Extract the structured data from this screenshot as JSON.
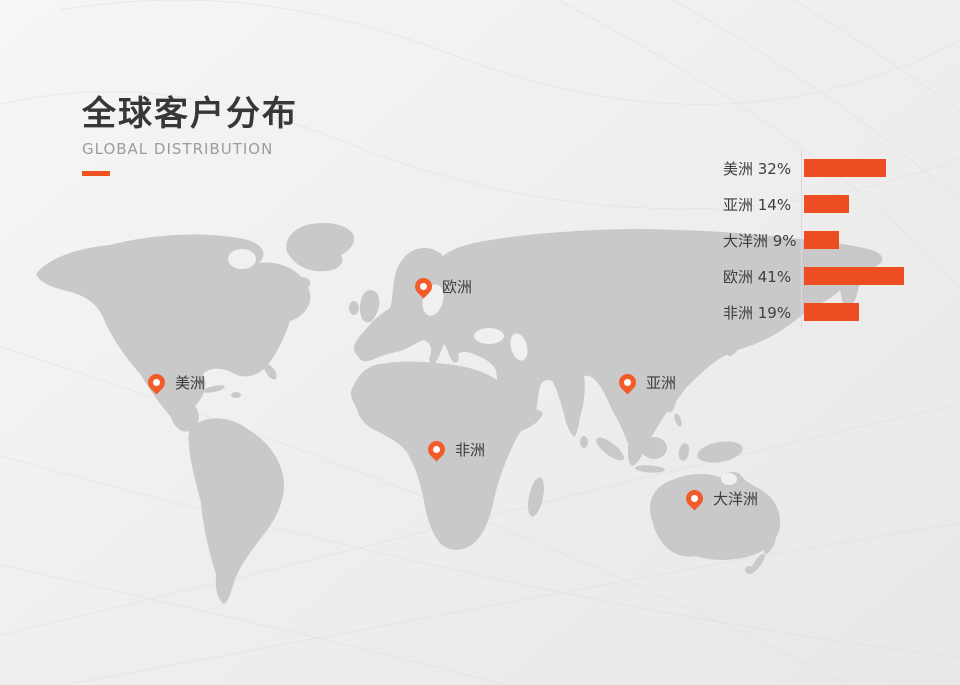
{
  "header": {
    "title": "全球客户分布",
    "subtitle": "GLOBAL DISTRIBUTION"
  },
  "colors": {
    "accent": "#F0531F",
    "bar": "#EE4D21",
    "pin": "#F25B2A",
    "map_land": "#C9C9C9",
    "title_text": "#373737",
    "subtitle_text": "#9C9C9C",
    "label_text": "#3E3E3E"
  },
  "map": {
    "markers": [
      {
        "id": "americas",
        "label": "美洲"
      },
      {
        "id": "europe",
        "label": "欧洲"
      },
      {
        "id": "africa",
        "label": "非洲"
      },
      {
        "id": "asia",
        "label": "亚洲"
      },
      {
        "id": "oceania",
        "label": "大洋洲"
      }
    ]
  },
  "chart_data": {
    "type": "bar",
    "orientation": "horizontal",
    "categories": [
      "美洲",
      "亚洲",
      "大洋洲",
      "欧洲",
      "非洲"
    ],
    "values": [
      32,
      14,
      9,
      41,
      19
    ],
    "unit": "%",
    "value_labels": [
      "美洲 32%",
      "亚洲 14%",
      "大洋洲 9%",
      "欧洲 41%",
      "非洲 19%"
    ],
    "bar_color": "#EE4D21",
    "xlim": [
      0,
      41
    ],
    "grid": false,
    "legend": false,
    "axis_line": "left-vertical",
    "label_position": "left-of-bar"
  }
}
